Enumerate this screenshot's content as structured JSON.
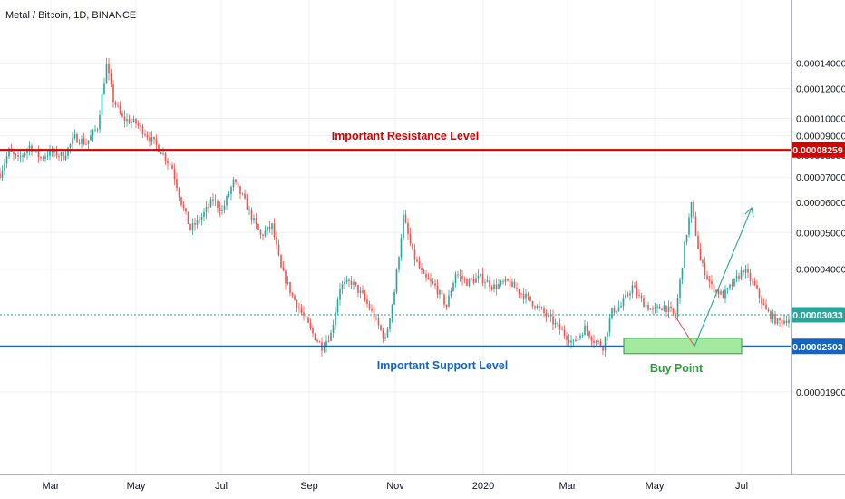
{
  "header": {
    "symbol_title": "Metal / Bitcoin, 1D, BINANCE"
  },
  "colors": {
    "up_candle": "#26a69a",
    "down_candle": "#ef5350",
    "resistance": "#d50000",
    "support": "#1565c0",
    "current_price": "#26a69a",
    "buy_zone_fill": "#a5e8a0",
    "buy_zone_stroke": "#2e9d3c",
    "projection_arrow": "#26a69a",
    "grid": "#eef0f3"
  },
  "chart_data": {
    "type": "candlestick",
    "scale": "log",
    "grid": true,
    "x_ticks": [
      "Mar",
      "May",
      "Jul",
      "Sep",
      "Nov",
      "2020",
      "Mar",
      "May",
      "Jul"
    ],
    "y_tick_labels": [
      "0.00014000",
      "0.00012000",
      "0.00010000",
      "0.00009000",
      "0.00008000",
      "0.00007000",
      "0.00006000",
      "0.00005000",
      "0.00004000",
      "0.00001900"
    ],
    "y_tick_values": [
      0.00014,
      0.00012,
      0.0001,
      9e-05,
      8e-05,
      7e-05,
      6e-05,
      5e-05,
      4e-05,
      1.9e-05
    ],
    "current_price": {
      "label": "0.00003033",
      "value": 3.033e-05
    },
    "price_path": [
      {
        "t": 0,
        "p": 7.15e-05
      },
      {
        "t": 4,
        "p": 8.2e-05
      },
      {
        "t": 8,
        "p": 7.75e-05
      },
      {
        "t": 13,
        "p": 8.45e-05
      },
      {
        "t": 18,
        "p": 7.85e-05
      },
      {
        "t": 22,
        "p": 8.15e-05
      },
      {
        "t": 28,
        "p": 7.95e-05
      },
      {
        "t": 33,
        "p": 8.9e-05
      },
      {
        "t": 38,
        "p": 8.6e-05
      },
      {
        "t": 43,
        "p": 9.5e-05
      },
      {
        "t": 47,
        "p": 0.000138
      },
      {
        "t": 50,
        "p": 0.000112
      },
      {
        "t": 54,
        "p": 0.0001
      },
      {
        "t": 60,
        "p": 9.7e-05
      },
      {
        "t": 66,
        "p": 8.9e-05
      },
      {
        "t": 71,
        "p": 8.2e-05
      },
      {
        "t": 76,
        "p": 7.4e-05
      },
      {
        "t": 80,
        "p": 6e-05
      },
      {
        "t": 84,
        "p": 5.1e-05
      },
      {
        "t": 89,
        "p": 5.5e-05
      },
      {
        "t": 94,
        "p": 6.1e-05
      },
      {
        "t": 98,
        "p": 5.7e-05
      },
      {
        "t": 103,
        "p": 6.8e-05
      },
      {
        "t": 107,
        "p": 6.2e-05
      },
      {
        "t": 111,
        "p": 5.5e-05
      },
      {
        "t": 115,
        "p": 4.9e-05
      },
      {
        "t": 120,
        "p": 5.2e-05
      },
      {
        "t": 124,
        "p": 4e-05
      },
      {
        "t": 129,
        "p": 3.4e-05
      },
      {
        "t": 134,
        "p": 3e-05
      },
      {
        "t": 138,
        "p": 2.7e-05
      },
      {
        "t": 142,
        "p": 2.5e-05
      },
      {
        "t": 146,
        "p": 2.7e-05
      },
      {
        "t": 150,
        "p": 3.6e-05
      },
      {
        "t": 155,
        "p": 3.7e-05
      },
      {
        "t": 160,
        "p": 3.4e-05
      },
      {
        "t": 165,
        "p": 3e-05
      },
      {
        "t": 170,
        "p": 2.6e-05
      },
      {
        "t": 174,
        "p": 3.5e-05
      },
      {
        "t": 178,
        "p": 5.5e-05
      },
      {
        "t": 182,
        "p": 4.4e-05
      },
      {
        "t": 187,
        "p": 3.8e-05
      },
      {
        "t": 192,
        "p": 3.6e-05
      },
      {
        "t": 197,
        "p": 3.2e-05
      },
      {
        "t": 201,
        "p": 3.9e-05
      },
      {
        "t": 206,
        "p": 3.7e-05
      },
      {
        "t": 212,
        "p": 3.8e-05
      },
      {
        "t": 218,
        "p": 3.6e-05
      },
      {
        "t": 224,
        "p": 3.7e-05
      },
      {
        "t": 229,
        "p": 3.5e-05
      },
      {
        "t": 234,
        "p": 3.3e-05
      },
      {
        "t": 239,
        "p": 3.1e-05
      },
      {
        "t": 244,
        "p": 2.9e-05
      },
      {
        "t": 249,
        "p": 2.7e-05
      },
      {
        "t": 253,
        "p": 2.55e-05
      },
      {
        "t": 258,
        "p": 2.8e-05
      },
      {
        "t": 262,
        "p": 2.6e-05
      },
      {
        "t": 266,
        "p": 2.5e-05
      },
      {
        "t": 270,
        "p": 3.1e-05
      },
      {
        "t": 274,
        "p": 3.2e-05
      },
      {
        "t": 279,
        "p": 3.6e-05
      },
      {
        "t": 283,
        "p": 3.3e-05
      },
      {
        "t": 288,
        "p": 3.1e-05
      },
      {
        "t": 293,
        "p": 3.2e-05
      },
      {
        "t": 298,
        "p": 3e-05
      },
      {
        "t": 302,
        "p": 4.6e-05
      },
      {
        "t": 305,
        "p": 5.9e-05
      },
      {
        "t": 309,
        "p": 4.2e-05
      },
      {
        "t": 314,
        "p": 3.6e-05
      },
      {
        "t": 319,
        "p": 3.4e-05
      },
      {
        "t": 324,
        "p": 3.7e-05
      },
      {
        "t": 328,
        "p": 4e-05
      },
      {
        "t": 333,
        "p": 3.6e-05
      },
      {
        "t": 338,
        "p": 3.1e-05
      },
      {
        "t": 343,
        "p": 2.9e-05
      },
      {
        "t": 347,
        "p": 2.95e-05
      },
      {
        "t": 351,
        "p": 3e-05
      }
    ],
    "annotations": {
      "resistance": {
        "label": "Important Resistance Level",
        "price_label": "0.00008259",
        "value": 8.259e-05
      },
      "support": {
        "label": "Important Support Level",
        "price_label": "0.00002503",
        "value": 2.503e-05
      },
      "buy_zone": {
        "label": "Buy Point"
      }
    }
  }
}
